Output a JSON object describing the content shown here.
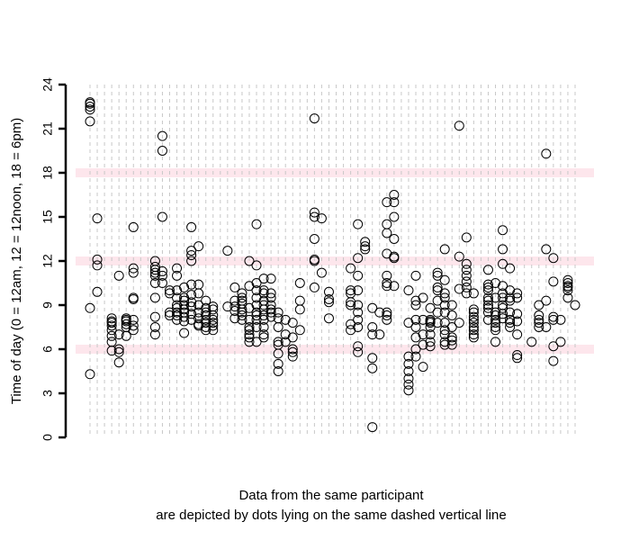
{
  "chart_data": {
    "type": "scatter",
    "ylabel": "Time of day (0 = 12am, 12 = 12noon, 18 = 6pm)",
    "xlabel_lines": [
      "Data from the same participant",
      "are depicted by dots lying on the same dashed vertical line"
    ],
    "ylim": [
      0,
      24
    ],
    "yticks": [
      0,
      3,
      6,
      9,
      12,
      15,
      18,
      21,
      24
    ],
    "grid": "dashed vertical line per participant",
    "highlight_bands": [
      6,
      12,
      18
    ],
    "colors": {
      "band": "#fde6ec",
      "grid": "#c8c8c8",
      "marker": "#000000"
    },
    "participants": [
      [
        22.8,
        22.7,
        22.5,
        22.3,
        21.5,
        8.8,
        4.3
      ],
      [
        14.9,
        12.1,
        11.7,
        9.9
      ],
      [],
      [
        8.1,
        7.9,
        7.8,
        7.6,
        7.3,
        6.9,
        6.5,
        5.9
      ],
      [
        11.0,
        7.0,
        6.0,
        5.8,
        5.1
      ],
      [
        8.1,
        8.0,
        7.9,
        7.7,
        7.5,
        6.9
      ],
      [
        14.3,
        11.5,
        11.2,
        9.5,
        9.4,
        8.0,
        7.6,
        7.3
      ],
      [],
      [],
      [
        12.0,
        11.6,
        11.4,
        11.2,
        11.0,
        10.5,
        9.5,
        8.2,
        7.5,
        7.0
      ],
      [
        20.5,
        19.5,
        15.0,
        11.3,
        11.0,
        10.5
      ],
      [
        10.0,
        9.8,
        8.5,
        8.3
      ],
      [
        11.5,
        11.0,
        10.0,
        9.5,
        9.0,
        8.8,
        8.5,
        8.3,
        8.0
      ],
      [
        10.2,
        9.5,
        9.3,
        9.0,
        8.7,
        8.5,
        8.2,
        7.9,
        7.1
      ],
      [
        14.3,
        12.7,
        12.4,
        12.0,
        10.4,
        9.7,
        9.2,
        8.9,
        8.4,
        8.0
      ],
      [
        13.0,
        10.4,
        9.8,
        9.0,
        8.5,
        8.1,
        7.7,
        7.6
      ],
      [
        9.3,
        8.8,
        8.5,
        8.3,
        8.0,
        7.8,
        7.5,
        7.3
      ],
      [
        8.9,
        8.7,
        8.3,
        8.0,
        7.8,
        7.6,
        7.3
      ],
      [],
      [
        12.7,
        8.9
      ],
      [
        10.2,
        9.3,
        8.9,
        8.6,
        8.1
      ],
      [
        9.8,
        9.5,
        9.3,
        9.1,
        8.7,
        8.5,
        8.3,
        8.0
      ],
      [
        12.0,
        10.3,
        8.8,
        8.0,
        7.5,
        7.3,
        7.0,
        6.8,
        6.5
      ],
      [
        14.5,
        11.7,
        10.5,
        10.0,
        9.5,
        9.0,
        8.5,
        8.3,
        8.0,
        7.5,
        6.5
      ],
      [
        10.8,
        10.0,
        9.8,
        9.3,
        9.0,
        8.7,
        8.3,
        8.0,
        7.5,
        7.0,
        6.8
      ],
      [
        10.8,
        9.8,
        9.5,
        9.0,
        8.7,
        8.5,
        8.2
      ],
      [
        8.5,
        8.1,
        7.5,
        6.5,
        6.3,
        5.7,
        5.0,
        4.5
      ],
      [
        8.0,
        7.0,
        6.5
      ],
      [
        7.8,
        6.8,
        6.0,
        5.8,
        5.5
      ],
      [
        10.5,
        9.3,
        8.7,
        7.3
      ],
      [],
      [
        21.7,
        15.3,
        15.0,
        13.5,
        12.1,
        12.0,
        10.2
      ],
      [
        14.9,
        11.2
      ],
      [
        9.9,
        9.4,
        9.2,
        8.1
      ],
      [],
      [],
      [
        11.5,
        10.0,
        9.8,
        9.2,
        9.0,
        7.7,
        7.3
      ],
      [
        14.5,
        12.2,
        11.0,
        10.0,
        9.0,
        8.5,
        8.0,
        7.5,
        6.2,
        5.8
      ],
      [
        13.3,
        13.0,
        12.8
      ],
      [
        8.8,
        7.5,
        7.0,
        5.4,
        4.7,
        0.7
      ],
      [
        8.5,
        7.0
      ],
      [
        16.0,
        14.5,
        13.9,
        12.5,
        11.0,
        10.5,
        10.3,
        8.5,
        8.3,
        8.0
      ],
      [
        16.5,
        16.0,
        15.0,
        13.5,
        12.3,
        12.2,
        10.3
      ],
      [],
      [
        10.0,
        7.8,
        5.5,
        5.0,
        4.5,
        4.0,
        3.6,
        3.2
      ],
      [
        11.0,
        9.3,
        9.0,
        8.0,
        7.5,
        6.8,
        6.0,
        5.5
      ],
      [
        9.5,
        8.0,
        7.0,
        6.3,
        4.8
      ],
      [
        8.8,
        8.0,
        7.9,
        7.8,
        7.5,
        7.0,
        6.5,
        6.2
      ],
      [
        11.2,
        11.0,
        10.2,
        10.0,
        9.3,
        8.5,
        7.8
      ],
      [
        12.8,
        10.7,
        9.8,
        9.5,
        9.0,
        8.5,
        7.8,
        7.3,
        7.0,
        6.5,
        6.3
      ],
      [
        9.0,
        8.3,
        7.5,
        6.8,
        6.6,
        6.3
      ],
      [
        21.2,
        12.3,
        10.1,
        7.8
      ],
      [
        13.6,
        11.8,
        11.4,
        11.0,
        10.6,
        10.2,
        9.8
      ],
      [
        9.8,
        8.7,
        8.5,
        8.2,
        8.0,
        7.8,
        7.5,
        7.3,
        7.0,
        6.8
      ],
      [],
      [
        11.4,
        10.4,
        10.2,
        10.0,
        9.5,
        9.3,
        9.0,
        8.8,
        8.5,
        8.0
      ],
      [
        10.5,
        9.5,
        8.5,
        8.3,
        8.0,
        7.8,
        7.5,
        7.3,
        6.5
      ],
      [
        14.1,
        12.8,
        11.8,
        10.3,
        9.8,
        9.5,
        9.0,
        8.8,
        8.4,
        8.1
      ],
      [
        11.5,
        10.0,
        9.5,
        9.3,
        8.5,
        8.0,
        7.8,
        7.5
      ],
      [
        9.8,
        9.5,
        8.4,
        7.9,
        7.0,
        5.6,
        5.4
      ],
      [],
      [
        6.5
      ],
      [
        9.0,
        8.3,
        8.0,
        7.8,
        7.5
      ],
      [
        19.3,
        12.8,
        9.3,
        7.5
      ],
      [
        12.2,
        10.6,
        8.2,
        8.0,
        6.2,
        5.2
      ],
      [
        8.0,
        6.5
      ],
      [
        10.7,
        10.5,
        10.3,
        10.2,
        10.0,
        9.5
      ],
      [
        9.0
      ]
    ]
  }
}
